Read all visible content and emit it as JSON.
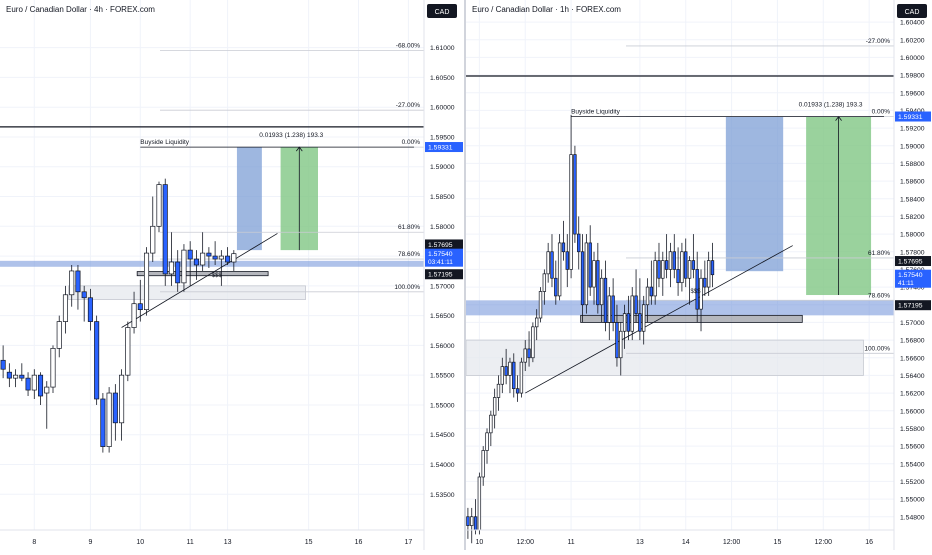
{
  "colors": {
    "bull": "#ffffff",
    "bear": "#2962ff",
    "wick": "#131722",
    "grid": "#f0f3fa",
    "axis_text": "#131722",
    "price_label": "#2962ff",
    "price_label_dark": "#131722",
    "zone_blue": "#6d8fd9",
    "zone_grey": "#d1d4dc",
    "target_green": "#81c784",
    "stop_blue": "#7e9fd6"
  },
  "chart_data": [
    {
      "type": "candlestick",
      "title": "Euro / Canadian Dollar · 4h · FOREX.com",
      "currency": "CAD",
      "ylim": [
        1.529,
        1.618
      ],
      "yticks": [
        "1.61000",
        "1.60500",
        "1.60000",
        "1.59500",
        "1.59000",
        "1.58500",
        "1.58000",
        "1.57500",
        "1.57000",
        "1.56500",
        "1.56000",
        "1.55500",
        "1.55000",
        "1.54500",
        "1.54000",
        "1.53500"
      ],
      "xticks": [
        {
          "label": "8",
          "i": 5
        },
        {
          "label": "9",
          "i": 14
        },
        {
          "label": "10",
          "i": 22
        },
        {
          "label": "11",
          "i": 30
        },
        {
          "label": "13",
          "i": 36
        },
        {
          "label": "15",
          "i": 49
        },
        {
          "label": "16",
          "i": 57
        },
        {
          "label": "17",
          "i": 65
        }
      ],
      "n_slots": 68,
      "candles": [
        {
          "o": 1.5575,
          "h": 1.56,
          "l": 1.5545,
          "c": 1.556
        },
        {
          "o": 1.5555,
          "h": 1.557,
          "l": 1.553,
          "c": 1.5545
        },
        {
          "o": 1.5545,
          "h": 1.556,
          "l": 1.553,
          "c": 1.555
        },
        {
          "o": 1.555,
          "h": 1.557,
          "l": 1.554,
          "c": 1.5545
        },
        {
          "o": 1.5545,
          "h": 1.5555,
          "l": 1.5515,
          "c": 1.5525
        },
        {
          "o": 1.5525,
          "h": 1.556,
          "l": 1.551,
          "c": 1.555
        },
        {
          "o": 1.555,
          "h": 1.5555,
          "l": 1.55,
          "c": 1.5515
        },
        {
          "o": 1.552,
          "h": 1.554,
          "l": 1.546,
          "c": 1.553
        },
        {
          "o": 1.553,
          "h": 1.56,
          "l": 1.552,
          "c": 1.5595
        },
        {
          "o": 1.5595,
          "h": 1.565,
          "l": 1.558,
          "c": 1.564
        },
        {
          "o": 1.564,
          "h": 1.57,
          "l": 1.562,
          "c": 1.5685
        },
        {
          "o": 1.5685,
          "h": 1.5735,
          "l": 1.5665,
          "c": 1.5725
        },
        {
          "o": 1.5725,
          "h": 1.5735,
          "l": 1.566,
          "c": 1.569
        },
        {
          "o": 1.569,
          "h": 1.57,
          "l": 1.564,
          "c": 1.568
        },
        {
          "o": 1.568,
          "h": 1.5695,
          "l": 1.5625,
          "c": 1.564
        },
        {
          "o": 1.564,
          "h": 1.565,
          "l": 1.55,
          "c": 1.551
        },
        {
          "o": 1.551,
          "h": 1.552,
          "l": 1.542,
          "c": 1.543
        },
        {
          "o": 1.543,
          "h": 1.553,
          "l": 1.542,
          "c": 1.552
        },
        {
          "o": 1.552,
          "h": 1.5535,
          "l": 1.544,
          "c": 1.547
        },
        {
          "o": 1.547,
          "h": 1.556,
          "l": 1.544,
          "c": 1.555
        },
        {
          "o": 1.555,
          "h": 1.564,
          "l": 1.554,
          "c": 1.563
        },
        {
          "o": 1.563,
          "h": 1.569,
          "l": 1.562,
          "c": 1.567
        },
        {
          "o": 1.567,
          "h": 1.571,
          "l": 1.564,
          "c": 1.566
        },
        {
          "o": 1.566,
          "h": 1.5765,
          "l": 1.565,
          "c": 1.5755
        },
        {
          "o": 1.5755,
          "h": 1.585,
          "l": 1.574,
          "c": 1.58
        },
        {
          "o": 1.58,
          "h": 1.5875,
          "l": 1.579,
          "c": 1.587
        },
        {
          "o": 1.587,
          "h": 1.588,
          "l": 1.57,
          "c": 1.572
        },
        {
          "o": 1.572,
          "h": 1.579,
          "l": 1.57,
          "c": 1.574
        },
        {
          "o": 1.574,
          "h": 1.576,
          "l": 1.569,
          "c": 1.5705
        },
        {
          "o": 1.5705,
          "h": 1.577,
          "l": 1.569,
          "c": 1.576
        },
        {
          "o": 1.576,
          "h": 1.5775,
          "l": 1.57,
          "c": 1.5745
        },
        {
          "o": 1.5745,
          "h": 1.576,
          "l": 1.571,
          "c": 1.5735
        },
        {
          "o": 1.5735,
          "h": 1.579,
          "l": 1.5725,
          "c": 1.5755
        },
        {
          "o": 1.5755,
          "h": 1.5765,
          "l": 1.573,
          "c": 1.575
        },
        {
          "o": 1.575,
          "h": 1.5775,
          "l": 1.5735,
          "c": 1.5745
        },
        {
          "o": 1.5745,
          "h": 1.576,
          "l": 1.57,
          "c": 1.575
        },
        {
          "o": 1.575,
          "h": 1.5765,
          "l": 1.5735,
          "c": 1.574
        },
        {
          "o": 1.574,
          "h": 1.576,
          "l": 1.5725,
          "c": 1.5754
        }
      ],
      "zones": [
        {
          "kind": "demand-blue",
          "y0": 1.5742,
          "y1": 1.5732,
          "i0": 0,
          "i1": 68
        },
        {
          "kind": "support-grey",
          "y0": 1.57,
          "y1": 1.5677,
          "i0": 11,
          "i1": 49
        },
        {
          "kind": "order-block",
          "y0": 1.5724,
          "y1": 1.5717,
          "i0": 22,
          "i1": 43
        }
      ],
      "fib_levels": [
        {
          "label": "-68.00%",
          "value": 1.6095
        },
        {
          "label": "-27.00%",
          "value": 1.5995
        },
        {
          "label": "0.00%",
          "value": 1.5933
        },
        {
          "label": "61.80%",
          "value": 1.579
        },
        {
          "label": "78.60%",
          "value": 1.5745
        },
        {
          "label": "100.00%",
          "value": 1.569
        }
      ],
      "horizontal_line": 1.5967,
      "annotations": {
        "liquidity_label": "Buyside Liquidity",
        "liquidity_level": 1.5933,
        "liquidity_from": 22,
        "measure": "0.01933 (1.238) 193.3",
        "sss": "$$$"
      },
      "long_position": {
        "entry": 1.576,
        "target": 1.5933,
        "i0": 38,
        "i1": 42
      },
      "target_box": {
        "entry": 1.576,
        "target": 1.5933,
        "i0": 45,
        "i1": 51
      },
      "trendline": [
        {
          "i": 19,
          "p": 1.563
        },
        {
          "i": 44,
          "p": 1.5788
        }
      ],
      "price_labels": [
        {
          "text": "1.59331",
          "value": 1.59331,
          "style": "blue"
        },
        {
          "text": "1.57695",
          "value": 1.57695,
          "style": "dark"
        },
        {
          "text": "1.57540",
          "sub": "03:41:11",
          "value": 1.5754,
          "style": "blue"
        },
        {
          "text": "1.57195",
          "value": 1.57195,
          "style": "dark"
        }
      ]
    },
    {
      "type": "candlestick",
      "title": "Euro / Canadian Dollar · 1h · FOREX.com",
      "currency": "CAD",
      "ylim": [
        1.5465,
        1.6065
      ],
      "yticks": [
        "1.60400",
        "1.60200",
        "1.60000",
        "1.59800",
        "1.59600",
        "1.59400",
        "1.59200",
        "1.59000",
        "1.58800",
        "1.58600",
        "1.58400",
        "1.58200",
        "1.58000",
        "1.57800",
        "1.57600",
        "1.57400",
        "1.57200",
        "1.57000",
        "1.56800",
        "1.56600",
        "1.56400",
        "1.56200",
        "1.56000",
        "1.55800",
        "1.55600",
        "1.55400",
        "1.55200",
        "1.55000",
        "1.54800"
      ],
      "xticks": [
        {
          "label": "10",
          "i": 3
        },
        {
          "label": "12:00",
          "i": 15
        },
        {
          "label": "11",
          "i": 27
        },
        {
          "label": "13",
          "i": 45
        },
        {
          "label": "14",
          "i": 57
        },
        {
          "label": "12:00",
          "i": 69
        },
        {
          "label": "15",
          "i": 81
        },
        {
          "label": "12:00",
          "i": 93
        },
        {
          "label": "16",
          "i": 105
        }
      ],
      "n_slots": 112,
      "candles": [
        {
          "o": 1.548,
          "h": 1.549,
          "l": 1.5455,
          "c": 1.547
        },
        {
          "o": 1.547,
          "h": 1.549,
          "l": 1.545,
          "c": 1.548
        },
        {
          "o": 1.548,
          "h": 1.55,
          "l": 1.546,
          "c": 1.5465
        },
        {
          "o": 1.5465,
          "h": 1.553,
          "l": 1.546,
          "c": 1.5525
        },
        {
          "o": 1.5525,
          "h": 1.556,
          "l": 1.5515,
          "c": 1.5555
        },
        {
          "o": 1.5555,
          "h": 1.558,
          "l": 1.554,
          "c": 1.5575
        },
        {
          "o": 1.5575,
          "h": 1.56,
          "l": 1.556,
          "c": 1.5595
        },
        {
          "o": 1.5595,
          "h": 1.5625,
          "l": 1.558,
          "c": 1.5615
        },
        {
          "o": 1.5615,
          "h": 1.564,
          "l": 1.56,
          "c": 1.563
        },
        {
          "o": 1.563,
          "h": 1.566,
          "l": 1.562,
          "c": 1.565
        },
        {
          "o": 1.565,
          "h": 1.567,
          "l": 1.563,
          "c": 1.564
        },
        {
          "o": 1.564,
          "h": 1.566,
          "l": 1.562,
          "c": 1.5655
        },
        {
          "o": 1.5655,
          "h": 1.5665,
          "l": 1.5615,
          "c": 1.5625
        },
        {
          "o": 1.5625,
          "h": 1.564,
          "l": 1.561,
          "c": 1.562
        },
        {
          "o": 1.562,
          "h": 1.566,
          "l": 1.5615,
          "c": 1.5655
        },
        {
          "o": 1.5655,
          "h": 1.568,
          "l": 1.5645,
          "c": 1.567
        },
        {
          "o": 1.567,
          "h": 1.569,
          "l": 1.565,
          "c": 1.566
        },
        {
          "o": 1.566,
          "h": 1.57,
          "l": 1.5655,
          "c": 1.5695
        },
        {
          "o": 1.5695,
          "h": 1.5715,
          "l": 1.568,
          "c": 1.5705
        },
        {
          "o": 1.5705,
          "h": 1.574,
          "l": 1.57,
          "c": 1.5735
        },
        {
          "o": 1.5735,
          "h": 1.576,
          "l": 1.572,
          "c": 1.5755
        },
        {
          "o": 1.5755,
          "h": 1.579,
          "l": 1.5745,
          "c": 1.578
        },
        {
          "o": 1.578,
          "h": 1.58,
          "l": 1.574,
          "c": 1.575
        },
        {
          "o": 1.575,
          "h": 1.577,
          "l": 1.572,
          "c": 1.573
        },
        {
          "o": 1.573,
          "h": 1.58,
          "l": 1.5725,
          "c": 1.579
        },
        {
          "o": 1.579,
          "h": 1.5815,
          "l": 1.577,
          "c": 1.578
        },
        {
          "o": 1.578,
          "h": 1.58,
          "l": 1.574,
          "c": 1.576
        },
        {
          "o": 1.576,
          "h": 1.5935,
          "l": 1.575,
          "c": 1.589
        },
        {
          "o": 1.589,
          "h": 1.59,
          "l": 1.579,
          "c": 1.58
        },
        {
          "o": 1.58,
          "h": 1.582,
          "l": 1.576,
          "c": 1.578
        },
        {
          "o": 1.578,
          "h": 1.58,
          "l": 1.57,
          "c": 1.572
        },
        {
          "o": 1.572,
          "h": 1.58,
          "l": 1.571,
          "c": 1.579
        },
        {
          "o": 1.579,
          "h": 1.581,
          "l": 1.573,
          "c": 1.574
        },
        {
          "o": 1.574,
          "h": 1.578,
          "l": 1.572,
          "c": 1.577
        },
        {
          "o": 1.577,
          "h": 1.579,
          "l": 1.571,
          "c": 1.572
        },
        {
          "o": 1.572,
          "h": 1.576,
          "l": 1.57,
          "c": 1.575
        },
        {
          "o": 1.575,
          "h": 1.577,
          "l": 1.569,
          "c": 1.57
        },
        {
          "o": 1.57,
          "h": 1.574,
          "l": 1.568,
          "c": 1.573
        },
        {
          "o": 1.573,
          "h": 1.575,
          "l": 1.569,
          "c": 1.57
        },
        {
          "o": 1.57,
          "h": 1.572,
          "l": 1.565,
          "c": 1.566
        },
        {
          "o": 1.566,
          "h": 1.57,
          "l": 1.564,
          "c": 1.569
        },
        {
          "o": 1.569,
          "h": 1.572,
          "l": 1.567,
          "c": 1.571
        },
        {
          "o": 1.571,
          "h": 1.573,
          "l": 1.568,
          "c": 1.569
        },
        {
          "o": 1.569,
          "h": 1.574,
          "l": 1.568,
          "c": 1.573
        },
        {
          "o": 1.573,
          "h": 1.576,
          "l": 1.57,
          "c": 1.571
        },
        {
          "o": 1.571,
          "h": 1.575,
          "l": 1.568,
          "c": 1.569
        },
        {
          "o": 1.569,
          "h": 1.573,
          "l": 1.5675,
          "c": 1.572
        },
        {
          "o": 1.572,
          "h": 1.575,
          "l": 1.57,
          "c": 1.574
        },
        {
          "o": 1.574,
          "h": 1.577,
          "l": 1.572,
          "c": 1.573
        },
        {
          "o": 1.573,
          "h": 1.578,
          "l": 1.572,
          "c": 1.577
        },
        {
          "o": 1.577,
          "h": 1.579,
          "l": 1.574,
          "c": 1.575
        },
        {
          "o": 1.575,
          "h": 1.578,
          "l": 1.573,
          "c": 1.577
        },
        {
          "o": 1.577,
          "h": 1.58,
          "l": 1.575,
          "c": 1.576
        },
        {
          "o": 1.576,
          "h": 1.579,
          "l": 1.574,
          "c": 1.578
        },
        {
          "o": 1.578,
          "h": 1.58,
          "l": 1.575,
          "c": 1.576
        },
        {
          "o": 1.576,
          "h": 1.5785,
          "l": 1.573,
          "c": 1.5745
        },
        {
          "o": 1.5745,
          "h": 1.579,
          "l": 1.5735,
          "c": 1.578
        },
        {
          "o": 1.578,
          "h": 1.5795,
          "l": 1.574,
          "c": 1.575
        },
        {
          "o": 1.575,
          "h": 1.5775,
          "l": 1.572,
          "c": 1.577
        },
        {
          "o": 1.577,
          "h": 1.58,
          "l": 1.575,
          "c": 1.576
        },
        {
          "o": 1.576,
          "h": 1.578,
          "l": 1.57,
          "c": 1.5715
        },
        {
          "o": 1.5715,
          "h": 1.576,
          "l": 1.569,
          "c": 1.575
        },
        {
          "o": 1.575,
          "h": 1.577,
          "l": 1.573,
          "c": 1.574
        },
        {
          "o": 1.574,
          "h": 1.578,
          "l": 1.573,
          "c": 1.577
        },
        {
          "o": 1.577,
          "h": 1.579,
          "l": 1.574,
          "c": 1.5754
        }
      ],
      "zones": [
        {
          "kind": "demand-blue",
          "y0": 1.5725,
          "y1": 1.5708,
          "i0": 0,
          "i1": 112
        },
        {
          "kind": "support-grey",
          "y0": 1.568,
          "y1": 1.564,
          "i0": 0,
          "i1": 104
        },
        {
          "kind": "order-block",
          "y0": 1.5708,
          "y1": 1.57,
          "i0": 30,
          "i1": 88
        }
      ],
      "fib_levels": [
        {
          "label": "-27.00%",
          "value": 1.6013
        },
        {
          "label": "0.00%",
          "value": 1.5933
        },
        {
          "label": "61.80%",
          "value": 1.5773
        },
        {
          "label": "78.60%",
          "value": 1.5725
        },
        {
          "label": "100.00%",
          "value": 1.5665
        }
      ],
      "horizontal_line": 1.5979,
      "annotations": {
        "liquidity_label": "Buyside Liquidity",
        "liquidity_level": 1.5933,
        "liquidity_from": 27,
        "measure": "0.01933 (1.238) 193.3",
        "sss": "$$$"
      },
      "long_position": {
        "entry": 1.5758,
        "target": 1.5933,
        "i0": 68,
        "i1": 83
      },
      "target_box": {
        "entry": 1.5731,
        "target": 1.5933,
        "i0": 89,
        "i1": 106
      },
      "trendline": [
        {
          "i": 15,
          "p": 1.562
        },
        {
          "i": 85,
          "p": 1.5787
        }
      ],
      "price_labels": [
        {
          "text": "1.59331",
          "value": 1.59331,
          "style": "blue"
        },
        {
          "text": "1.57695",
          "value": 1.57695,
          "style": "dark"
        },
        {
          "text": "1.57540",
          "sub": "41:11",
          "value": 1.5754,
          "style": "blue"
        },
        {
          "text": "1.57195",
          "value": 1.57195,
          "style": "dark"
        }
      ]
    }
  ]
}
